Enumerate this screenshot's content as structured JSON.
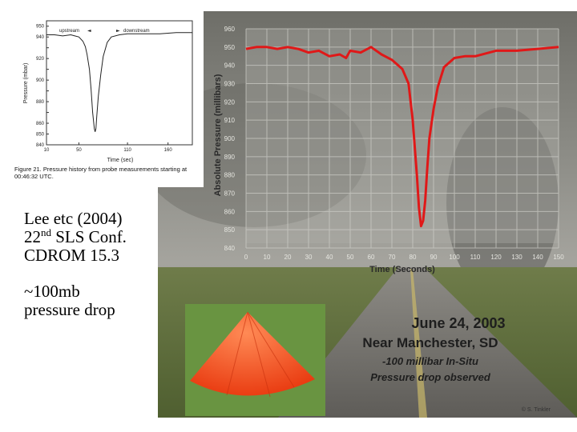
{
  "colors": {
    "photo_curve": "#e01818",
    "inset_curve": "#222222",
    "cone": "#ff4a1a",
    "grass": "#5f8a3a"
  },
  "slide_text": {
    "line1": "Lee etc (2004)",
    "line2_prefix": "22",
    "line2_sup": "nd",
    "line2_suffix": " SLS Conf.",
    "line3": "CDROM 15.3",
    "line4": "~100mb",
    "line5": "pressure drop"
  },
  "photo_overlay": {
    "date": "June 24, 2003",
    "place": "Near Manchester, SD",
    "note1": "-100 millibar In-Situ",
    "note2": "Pressure drop observed",
    "credit": "© S. Tinkler"
  },
  "chart_data": [
    {
      "type": "line",
      "title": "",
      "xlabel": "Time (sec)",
      "ylabel": "Pressure (mbar)",
      "xlim": [
        10,
        190
      ],
      "ylim": [
        840,
        955
      ],
      "x_ticks": [
        10,
        50,
        110,
        160
      ],
      "y_ticks": [
        840,
        850,
        860,
        870,
        880,
        890,
        900,
        910,
        920,
        930,
        940,
        950
      ],
      "annotations": [
        "upstream",
        "downstream"
      ],
      "caption": "Figure 21.  Pressure history from probe measurements starting at 00:46:32 UTC.",
      "x": [
        10,
        20,
        30,
        40,
        45,
        50,
        55,
        58,
        60,
        63,
        65,
        67,
        69,
        70,
        71,
        72,
        74,
        77,
        80,
        85,
        90,
        100,
        110,
        120,
        130,
        150,
        170,
        190
      ],
      "values": [
        942,
        942,
        941,
        942,
        941,
        940,
        936,
        931,
        924,
        910,
        892,
        870,
        855,
        852,
        855,
        866,
        885,
        905,
        922,
        935,
        940,
        942,
        943,
        943,
        943,
        943,
        944,
        944
      ]
    },
    {
      "type": "line",
      "title": "",
      "xlabel": "Time (Seconds)",
      "ylabel": "Absolute Pressure (millibars)",
      "xlim": [
        0,
        150
      ],
      "ylim": [
        840,
        960
      ],
      "x_ticks": [
        0,
        10,
        20,
        30,
        40,
        50,
        60,
        70,
        80,
        90,
        100,
        110,
        120,
        130,
        140,
        150
      ],
      "y_ticks": [
        840,
        850,
        860,
        870,
        880,
        890,
        900,
        910,
        920,
        930,
        940,
        950,
        960
      ],
      "x": [
        0,
        5,
        10,
        15,
        20,
        25,
        30,
        35,
        40,
        45,
        48,
        50,
        55,
        60,
        65,
        70,
        75,
        78,
        80,
        82,
        83,
        84,
        85,
        86,
        87,
        88,
        90,
        92,
        95,
        100,
        105,
        110,
        120,
        130,
        140,
        150
      ],
      "values": [
        949,
        950,
        950,
        949,
        950,
        949,
        947,
        948,
        945,
        946,
        944,
        948,
        947,
        950,
        946,
        943,
        938,
        930,
        910,
        880,
        862,
        852,
        855,
        866,
        884,
        900,
        916,
        928,
        939,
        944,
        945,
        945,
        948,
        948,
        949,
        950
      ]
    }
  ]
}
